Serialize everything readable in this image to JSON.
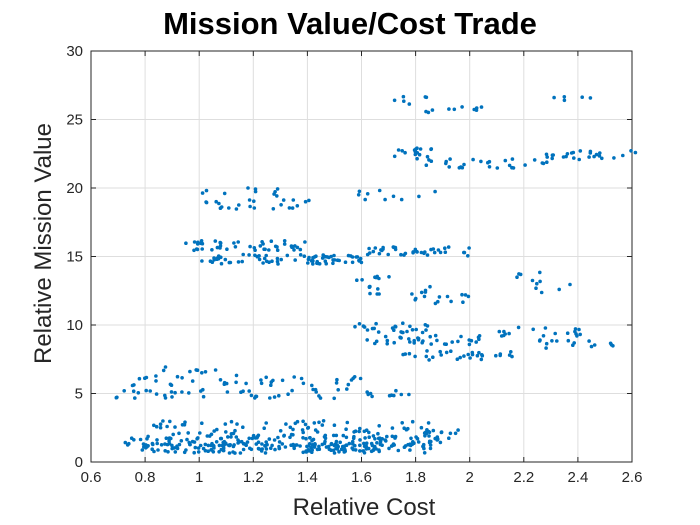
{
  "chart_data": {
    "type": "scatter",
    "title": "Mission Value/Cost Trade",
    "xlabel": "Relative Cost",
    "ylabel": "Relative Mission Value",
    "xlim": [
      0.6,
      2.6
    ],
    "ylim": [
      0,
      30
    ],
    "xticks": [
      "0.6",
      "0.8",
      "1",
      "1.2",
      "1.4",
      "1.6",
      "1.8",
      "2",
      "2.2",
      "2.4",
      "2.6"
    ],
    "yticks": [
      "0",
      "5",
      "10",
      "15",
      "20",
      "25",
      "30"
    ],
    "grid": true,
    "legend": "none",
    "marker_color": "#0072BD",
    "clusters": [
      {
        "y": 1.0,
        "x": [
          0.78,
          1.86
        ],
        "n": 160
      },
      {
        "y": 1.5,
        "x": [
          0.72,
          1.9
        ],
        "n": 110
      },
      {
        "y": 2.0,
        "x": [
          0.8,
          1.97
        ],
        "n": 70
      },
      {
        "y": 2.7,
        "x": [
          0.83,
          1.88
        ],
        "n": 45
      },
      {
        "y": 5.0,
        "x": [
          0.68,
          1.8
        ],
        "n": 50
      },
      {
        "y": 5.9,
        "x": [
          0.74,
          1.6
        ],
        "n": 35
      },
      {
        "y": 6.6,
        "x": [
          0.8,
          1.16
        ],
        "n": 10
      },
      {
        "y": 7.8,
        "x": [
          1.75,
          2.19
        ],
        "n": 30
      },
      {
        "y": 8.6,
        "x": [
          2.25,
          2.55
        ],
        "n": 15
      },
      {
        "y": 8.9,
        "x": [
          1.62,
          2.05
        ],
        "n": 35
      },
      {
        "y": 9.5,
        "x": [
          2.1,
          2.42
        ],
        "n": 18
      },
      {
        "y": 9.8,
        "x": [
          1.57,
          1.86
        ],
        "n": 25
      },
      {
        "y": 11.9,
        "x": [
          1.75,
          2.02
        ],
        "n": 12
      },
      {
        "y": 12.6,
        "x": [
          1.62,
          1.88
        ],
        "n": 12
      },
      {
        "y": 12.7,
        "x": [
          2.24,
          2.38
        ],
        "n": 5
      },
      {
        "y": 13.5,
        "x": [
          1.58,
          1.76
        ],
        "n": 7
      },
      {
        "y": 13.5,
        "x": [
          2.15,
          2.28
        ],
        "n": 6
      },
      {
        "y": 14.8,
        "x": [
          1.0,
          1.6
        ],
        "n": 75
      },
      {
        "y": 15.4,
        "x": [
          1.55,
          2.0
        ],
        "n": 40
      },
      {
        "y": 15.8,
        "x": [
          0.93,
          1.4
        ],
        "n": 45
      },
      {
        "y": 18.8,
        "x": [
          1.0,
          1.42
        ],
        "n": 22
      },
      {
        "y": 19.5,
        "x": [
          1.58,
          1.9
        ],
        "n": 10
      },
      {
        "y": 19.7,
        "x": [
          0.96,
          1.3
        ],
        "n": 10
      },
      {
        "y": 21.8,
        "x": [
          1.78,
          2.3
        ],
        "n": 28
      },
      {
        "y": 22.4,
        "x": [
          2.28,
          2.62
        ],
        "n": 25
      },
      {
        "y": 22.6,
        "x": [
          1.72,
          1.87
        ],
        "n": 15
      },
      {
        "y": 25.7,
        "x": [
          1.8,
          2.07
        ],
        "n": 10
      },
      {
        "y": 26.4,
        "x": [
          1.72,
          1.85
        ],
        "n": 6
      },
      {
        "y": 26.4,
        "x": [
          2.3,
          2.45
        ],
        "n": 5
      }
    ]
  }
}
